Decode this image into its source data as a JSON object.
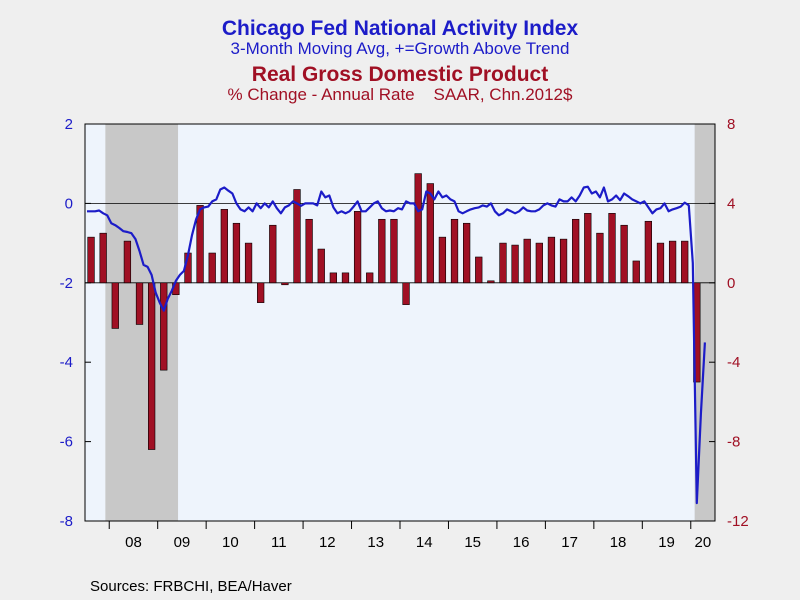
{
  "titles": {
    "cfnai_title": "Chicago Fed National Activity Index",
    "cfnai_subtitle": "3-Month Moving Avg, +=Growth Above Trend",
    "gdp_title": "Real Gross Domestic Product",
    "gdp_subtitle_left": "% Change - Annual Rate",
    "gdp_subtitle_right": "SAAR, Chn.2012$"
  },
  "source": "Sources:  FRBCHI, BEA/Haver",
  "colors": {
    "background": "#efefef",
    "plot_bg": "#eef4fc",
    "recession": "#c8c8c8",
    "line": "#1c1cc8",
    "bar": "#a01024",
    "left_axis": "#1c1cc8",
    "right_axis": "#a01024"
  },
  "chart_data": {
    "type": "bar+line",
    "x_range": [
      2007.5,
      2020.5
    ],
    "x_tick_labels": [
      "08",
      "09",
      "10",
      "11",
      "12",
      "13",
      "14",
      "15",
      "16",
      "17",
      "18",
      "19",
      "20"
    ],
    "x_tick_years": [
      2008,
      2009,
      2010,
      2011,
      2012,
      2013,
      2014,
      2015,
      2016,
      2017,
      2018,
      2019,
      2020
    ],
    "left_axis": {
      "ylim": [
        -8,
        2
      ],
      "ticks": [
        2,
        0,
        -2,
        -4,
        -6,
        -8
      ],
      "tick_labels": [
        "2",
        "0",
        "-2",
        "-4",
        "-6",
        "-8"
      ]
    },
    "right_axis": {
      "ylim": [
        -12,
        8
      ],
      "ticks": [
        8,
        4,
        0,
        -4,
        -8,
        -12
      ],
      "tick_labels": [
        "8",
        "4",
        "0",
        "-4",
        "-8",
        "-12"
      ]
    },
    "recessions": [
      [
        2007.92,
        2009.42
      ],
      [
        2020.08,
        2020.5
      ]
    ],
    "gdp": {
      "quarter_start": 2007.5,
      "values": [
        2.3,
        2.5,
        -2.3,
        2.1,
        -2.1,
        -8.4,
        -4.4,
        -0.6,
        1.5,
        3.9,
        1.5,
        3.7,
        3.0,
        2.0,
        -1.0,
        2.9,
        -0.1,
        4.7,
        3.2,
        1.7,
        0.5,
        0.5,
        3.6,
        0.5,
        3.2,
        3.2,
        -1.1,
        5.5,
        5.0,
        2.3,
        3.2,
        3.0,
        1.3,
        0.1,
        2.0,
        1.9,
        2.2,
        2.0,
        2.3,
        2.2,
        3.2,
        3.5,
        2.5,
        3.5,
        2.9,
        1.1,
        3.1,
        2.0,
        2.1,
        2.1,
        -5.0
      ]
    },
    "cfnai_3mma": {
      "month_start": 2007.5,
      "values": [
        -0.2,
        -0.2,
        -0.2,
        -0.18,
        -0.25,
        -0.3,
        -0.5,
        -0.55,
        -0.62,
        -0.7,
        -0.72,
        -0.75,
        -0.9,
        -1.2,
        -1.55,
        -1.6,
        -1.8,
        -2.25,
        -2.5,
        -2.7,
        -2.4,
        -2.2,
        -1.95,
        -1.8,
        -1.7,
        -1.3,
        -0.8,
        -0.4,
        -0.15,
        -0.1,
        -0.08,
        0.05,
        0.1,
        0.35,
        0.4,
        0.32,
        0.25,
        0.0,
        -0.15,
        -0.2,
        -0.1,
        -0.2,
        0.0,
        -0.12,
        0.0,
        -0.1,
        0.05,
        -0.12,
        -0.25,
        -0.1,
        -0.05,
        0.05,
        0.0,
        -0.06,
        0.0,
        0.0,
        0.0,
        -0.05,
        0.3,
        0.15,
        0.2,
        -0.1,
        -0.25,
        -0.2,
        -0.25,
        -0.2,
        -0.08,
        0.05,
        -0.2,
        -0.2,
        -0.1,
        0.0,
        0.05,
        -0.12,
        -0.2,
        -0.18,
        -0.2,
        -0.12,
        -0.15,
        0.05,
        0.0,
        0.0,
        -0.2,
        -0.15,
        0.3,
        0.25,
        0.1,
        0.3,
        0.15,
        0.2,
        0.1,
        0.05,
        -0.2,
        -0.25,
        -0.2,
        -0.15,
        -0.12,
        -0.1,
        -0.05,
        -0.08,
        0.0,
        -0.2,
        -0.3,
        -0.25,
        -0.15,
        -0.2,
        -0.25,
        -0.2,
        -0.1,
        -0.18,
        -0.2,
        -0.2,
        -0.15,
        -0.05,
        0.0,
        -0.05,
        -0.08,
        0.1,
        0.05,
        0.05,
        0.15,
        0.05,
        0.2,
        0.4,
        0.42,
        0.25,
        0.3,
        0.15,
        0.4,
        0.05,
        0.1,
        0.2,
        0.08,
        0.25,
        0.18,
        0.1,
        0.05,
        0.0,
        0.05,
        -0.1,
        -0.25,
        -0.15,
        -0.12,
        0.0,
        -0.2,
        -0.15,
        -0.12,
        -0.08,
        0.02,
        -0.05,
        -1.5,
        -7.55,
        -5.3,
        -3.5
      ]
    }
  }
}
